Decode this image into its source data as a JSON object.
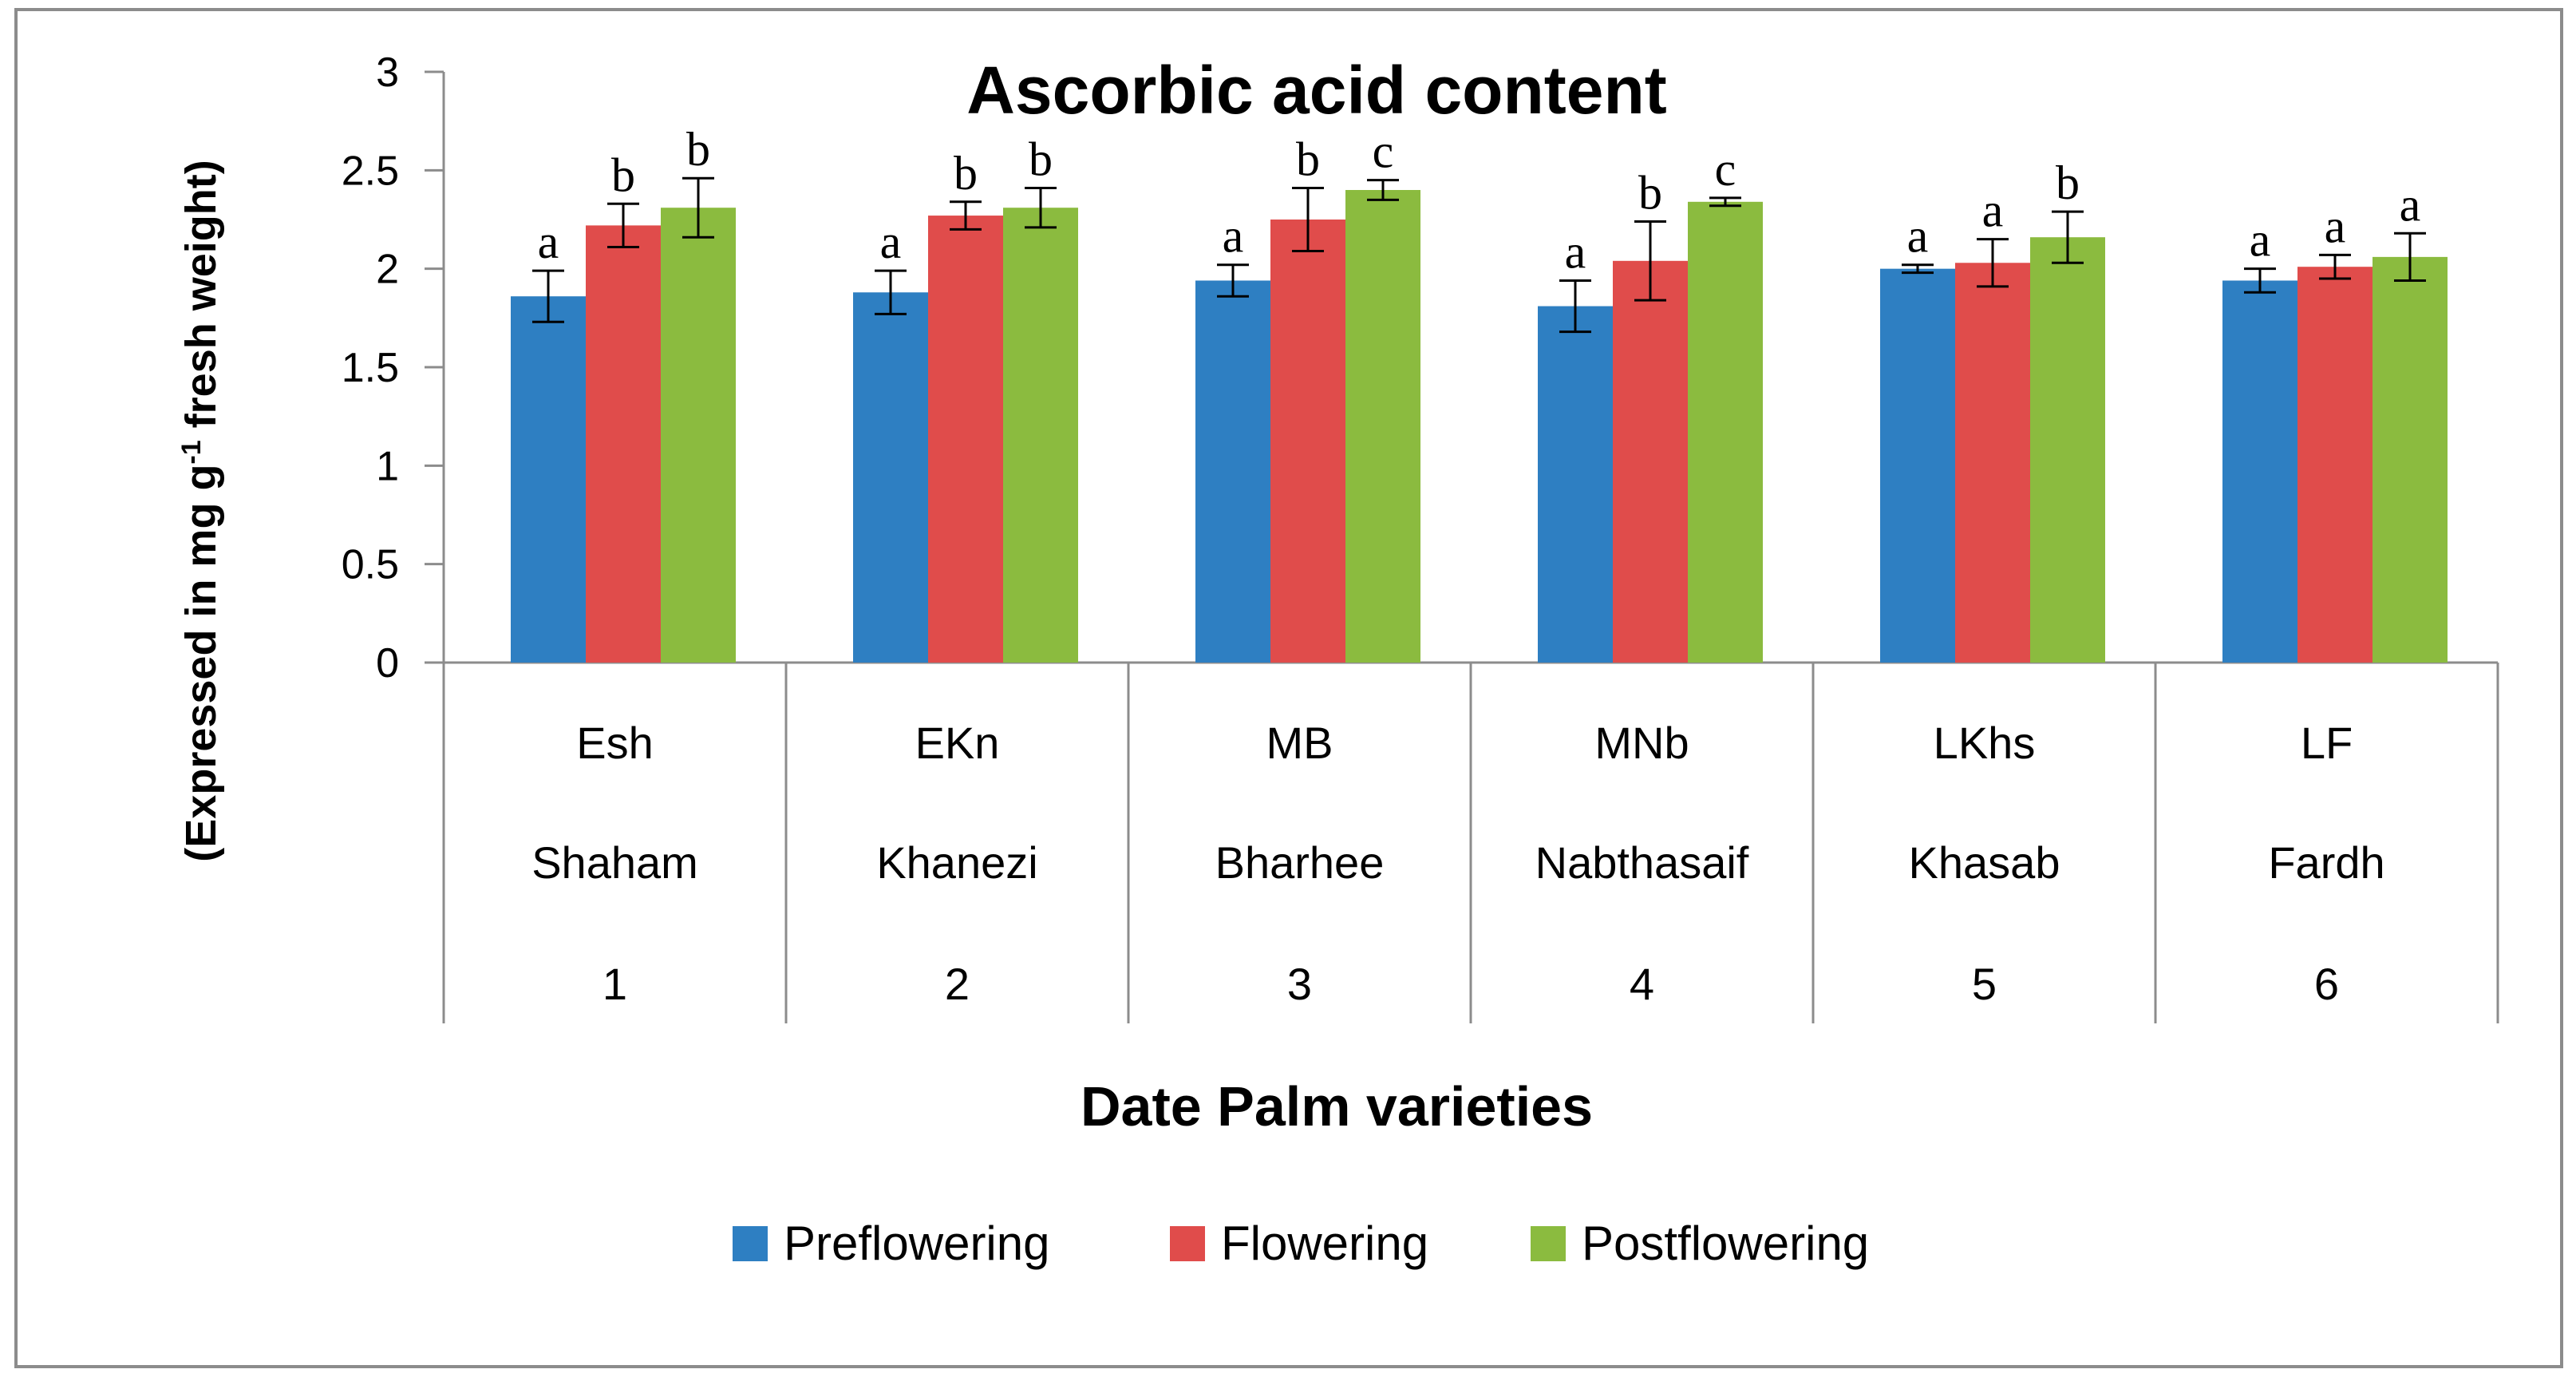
{
  "chart_data": {
    "type": "bar",
    "title": "Ascorbic acid content",
    "xlabel": "Date Palm varieties",
    "ylabel": {
      "prefix": "(Expressed in mg g",
      "superscript": "-1",
      "suffix": " fresh weight)"
    },
    "ylim": [
      0,
      3
    ],
    "yticks": [
      0,
      0.5,
      1,
      1.5,
      2,
      2.5,
      3
    ],
    "ytick_labels": [
      "0",
      "0.5",
      "1",
      "1.5",
      "2",
      "2.5",
      "3"
    ],
    "grid": false,
    "legend_position": "bottom",
    "categories": [
      {
        "code": "Esh",
        "name": "Shaham",
        "number": "1"
      },
      {
        "code": "EKn",
        "name": "Khanezi",
        "number": "2"
      },
      {
        "code": "MB",
        "name": "Bharhee",
        "number": "3"
      },
      {
        "code": "MNb",
        "name": "Nabthasaif",
        "number": "4"
      },
      {
        "code": "LKhs",
        "name": "Khasab",
        "number": "5"
      },
      {
        "code": "LF",
        "name": "Fardh",
        "number": "6"
      }
    ],
    "series": [
      {
        "name": "Preflowering",
        "color": "#2e7fc2",
        "values": [
          1.86,
          1.88,
          1.94,
          1.81,
          2.0,
          1.94
        ],
        "errors": [
          0.13,
          0.11,
          0.08,
          0.13,
          0.02,
          0.06
        ],
        "letters": [
          "a",
          "a",
          "a",
          "a",
          "a",
          "a"
        ]
      },
      {
        "name": "Flowering",
        "color": "#e04c4b",
        "values": [
          2.22,
          2.27,
          2.25,
          2.04,
          2.03,
          2.01
        ],
        "errors": [
          0.11,
          0.07,
          0.16,
          0.2,
          0.12,
          0.06
        ],
        "letters": [
          "b",
          "b",
          "b",
          "b",
          "a",
          "a"
        ]
      },
      {
        "name": "Postflowering",
        "color": "#8bbb3f",
        "values": [
          2.31,
          2.31,
          2.4,
          2.34,
          2.16,
          2.06
        ],
        "errors": [
          0.15,
          0.1,
          0.05,
          0.02,
          0.13,
          0.12
        ],
        "letters": [
          "b",
          "b",
          "c",
          "c",
          "b",
          "a"
        ]
      }
    ]
  }
}
